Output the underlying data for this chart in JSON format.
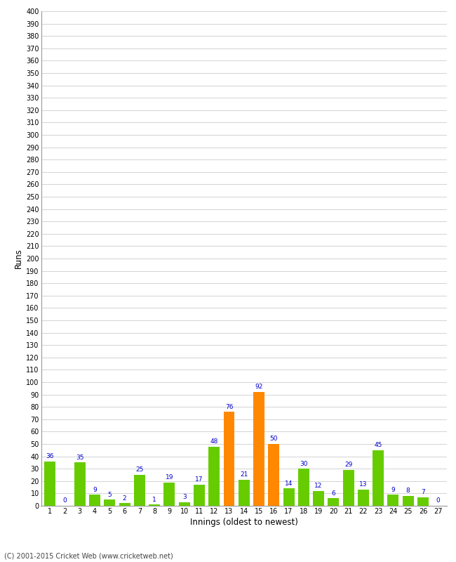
{
  "innings": [
    1,
    2,
    3,
    4,
    5,
    6,
    7,
    8,
    9,
    10,
    11,
    12,
    13,
    14,
    15,
    16,
    17,
    18,
    19,
    20,
    21,
    22,
    23,
    24,
    25,
    26,
    27
  ],
  "runs": [
    36,
    0,
    35,
    9,
    5,
    2,
    25,
    1,
    19,
    3,
    17,
    48,
    76,
    21,
    92,
    50,
    14,
    30,
    12,
    6,
    29,
    13,
    45,
    9,
    8,
    7,
    0
  ],
  "colors": [
    "#66cc00",
    "#66cc00",
    "#66cc00",
    "#66cc00",
    "#66cc00",
    "#66cc00",
    "#66cc00",
    "#66cc00",
    "#66cc00",
    "#66cc00",
    "#66cc00",
    "#66cc00",
    "#ff8800",
    "#66cc00",
    "#ff8800",
    "#ff8800",
    "#66cc00",
    "#66cc00",
    "#66cc00",
    "#66cc00",
    "#66cc00",
    "#66cc00",
    "#66cc00",
    "#66cc00",
    "#66cc00",
    "#66cc00",
    "#66cc00"
  ],
  "ylabel": "Runs",
  "xlabel": "Innings (oldest to newest)",
  "ylim": [
    0,
    400
  ],
  "background_color": "#ffffff",
  "grid_color": "#cccccc",
  "bar_label_color": "#0000cc",
  "footer": "(C) 2001-2015 Cricket Web (www.cricketweb.net)"
}
